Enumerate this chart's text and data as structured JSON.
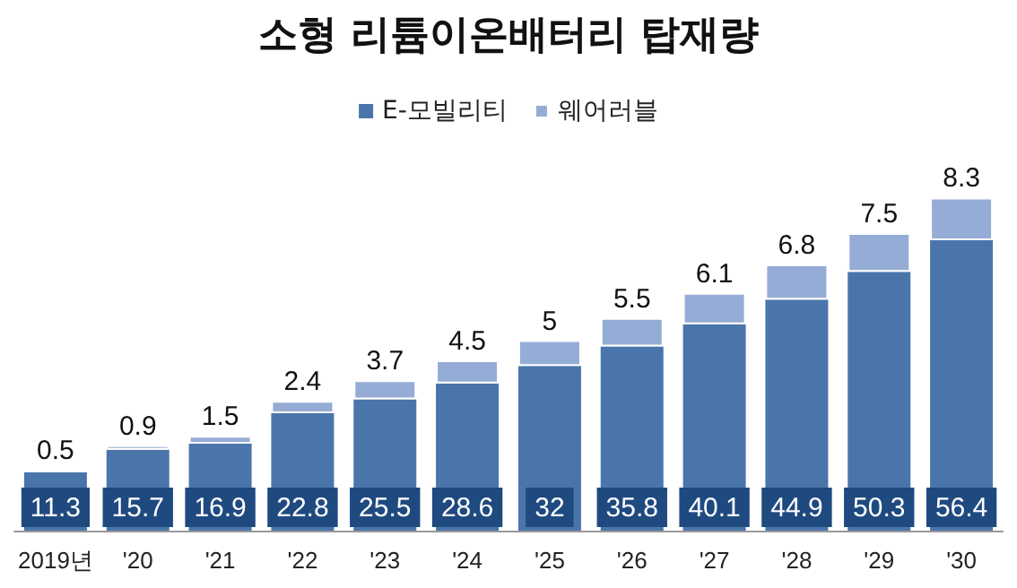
{
  "chart_data": {
    "type": "bar",
    "title": "소형 리튬이온배터리 탑재량",
    "categories": [
      "2019년",
      "'20",
      "'21",
      "'22",
      "'23",
      "'24",
      "'25",
      "'26",
      "'27",
      "'28",
      "'29",
      "'30"
    ],
    "series": [
      {
        "name": "E-모빌리티",
        "color": "#4a75ab",
        "values": [
          11.3,
          15.7,
          16.9,
          22.8,
          25.5,
          28.6,
          32,
          35.8,
          40.1,
          44.9,
          50.3,
          56.4
        ]
      },
      {
        "name": "웨어러블",
        "color": "#95acd6",
        "values": [
          0.5,
          0.9,
          1.5,
          2.4,
          3.7,
          4.5,
          5,
          5.5,
          6.1,
          6.8,
          7.5,
          8.3
        ]
      }
    ],
    "stacked": true,
    "data_labels": true,
    "legend": "top",
    "grid": false
  }
}
